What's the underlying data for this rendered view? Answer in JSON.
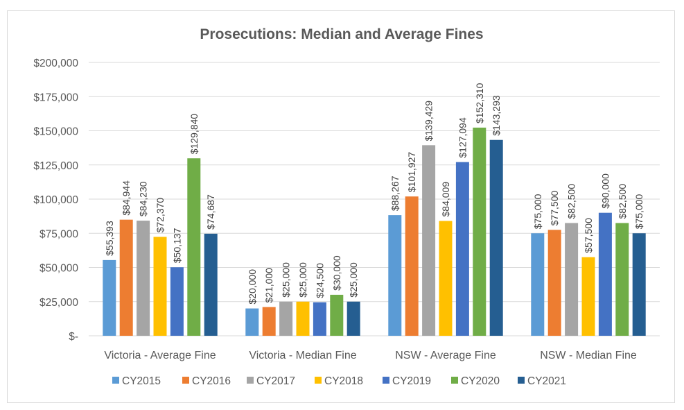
{
  "chart_data": {
    "type": "bar",
    "title": "Prosecutions: Median and Average Fines",
    "xlabel": "",
    "ylabel": "",
    "ylim": [
      0,
      200000
    ],
    "yticks": [
      0,
      25000,
      50000,
      75000,
      100000,
      125000,
      150000,
      175000,
      200000
    ],
    "ytick_labels": [
      "$-",
      "$25,000",
      "$50,000",
      "$75,000",
      "$100,000",
      "$125,000",
      "$150,000",
      "$175,000",
      "$200,000"
    ],
    "grid": true,
    "legend_position": "bottom",
    "categories": [
      "Victoria - Average Fine",
      "Victoria - Median Fine",
      "NSW - Average Fine",
      "NSW - Median Fine"
    ],
    "series": [
      {
        "name": "CY2015",
        "color": "#5B9BD5",
        "values": [
          55393,
          20000,
          88267,
          75000
        ],
        "labels": [
          "$55,393",
          "$20,000",
          "$88,267",
          "$75,000"
        ]
      },
      {
        "name": "CY2016",
        "color": "#ED7D31",
        "values": [
          84944,
          21000,
          101927,
          77500
        ],
        "labels": [
          "$84,944",
          "$21,000",
          "$101,927",
          "$77,500"
        ]
      },
      {
        "name": "CY2017",
        "color": "#A5A5A5",
        "values": [
          84230,
          25000,
          139429,
          82500
        ],
        "labels": [
          "$84,230",
          "$25,000",
          "$139,429",
          "$82,500"
        ]
      },
      {
        "name": "CY2018",
        "color": "#FFC000",
        "values": [
          72370,
          25000,
          84009,
          57500
        ],
        "labels": [
          "$72,370",
          "$25,000",
          "$84,009",
          "$57,500"
        ]
      },
      {
        "name": "CY2019",
        "color": "#4472C4",
        "values": [
          50137,
          24500,
          127094,
          90000
        ],
        "labels": [
          "$50,137",
          "$24,500",
          "$127,094",
          "$90,000"
        ]
      },
      {
        "name": "CY2020",
        "color": "#70AD47",
        "values": [
          129840,
          30000,
          152310,
          82500
        ],
        "labels": [
          "$129,840",
          "$30,000",
          "$152,310",
          "$82,500"
        ]
      },
      {
        "name": "CY2021",
        "color": "#255E91",
        "values": [
          74687,
          25000,
          143293,
          75000
        ],
        "labels": [
          "$74,687",
          "$25,000",
          "$143,293",
          "$75,000"
        ]
      }
    ]
  }
}
